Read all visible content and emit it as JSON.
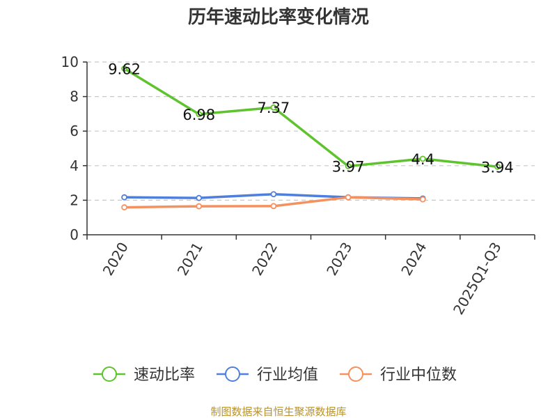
{
  "chart_data": {
    "type": "line",
    "title": "历年速动比率变化情况",
    "categories": [
      "2020",
      "2021",
      "2022",
      "2023",
      "2024",
      "2025Q1-Q3"
    ],
    "ylim": [
      0,
      10
    ],
    "yticks": [
      0,
      2,
      4,
      6,
      8,
      10
    ],
    "grid": true,
    "legend_position": "bottom",
    "series": [
      {
        "name": "速动比率",
        "color": "#5fc32e",
        "values": [
          9.62,
          6.98,
          7.37,
          3.97,
          4.4,
          3.94
        ],
        "labels": [
          "9.62",
          "6.98",
          "7.37",
          "3.97",
          "4.4",
          "3.94"
        ]
      },
      {
        "name": "行业均值",
        "color": "#4f7fdc",
        "values": [
          2.17,
          2.13,
          2.35,
          2.17,
          2.1,
          null
        ]
      },
      {
        "name": "行业中位数",
        "color": "#f5915e",
        "values": [
          1.59,
          1.65,
          1.66,
          2.17,
          2.05,
          null
        ]
      }
    ]
  },
  "source_text": "制图数据来自恒生聚源数据库"
}
